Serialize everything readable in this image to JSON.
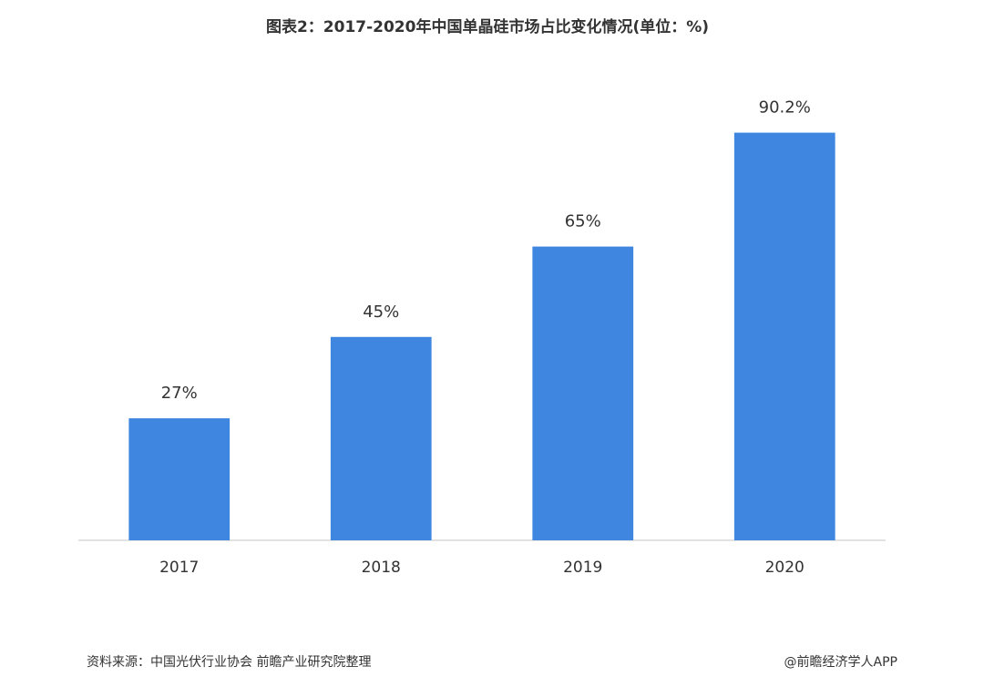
{
  "chart_data": {
    "type": "bar",
    "title": "图表2：2017-2020年中国单晶硅市场占比变化情况(单位：%)",
    "categories": [
      "2017",
      "2018",
      "2019",
      "2020"
    ],
    "values": [
      27,
      45,
      65,
      90.2
    ],
    "value_labels": [
      "27%",
      "45%",
      "65%",
      "90.2%"
    ],
    "color": "#3f86e0",
    "ylim": [
      0,
      100
    ],
    "source": "资料来源：中国光伏行业协会 前瞻产业研究院整理",
    "credit": "@前瞻经济学人APP"
  }
}
